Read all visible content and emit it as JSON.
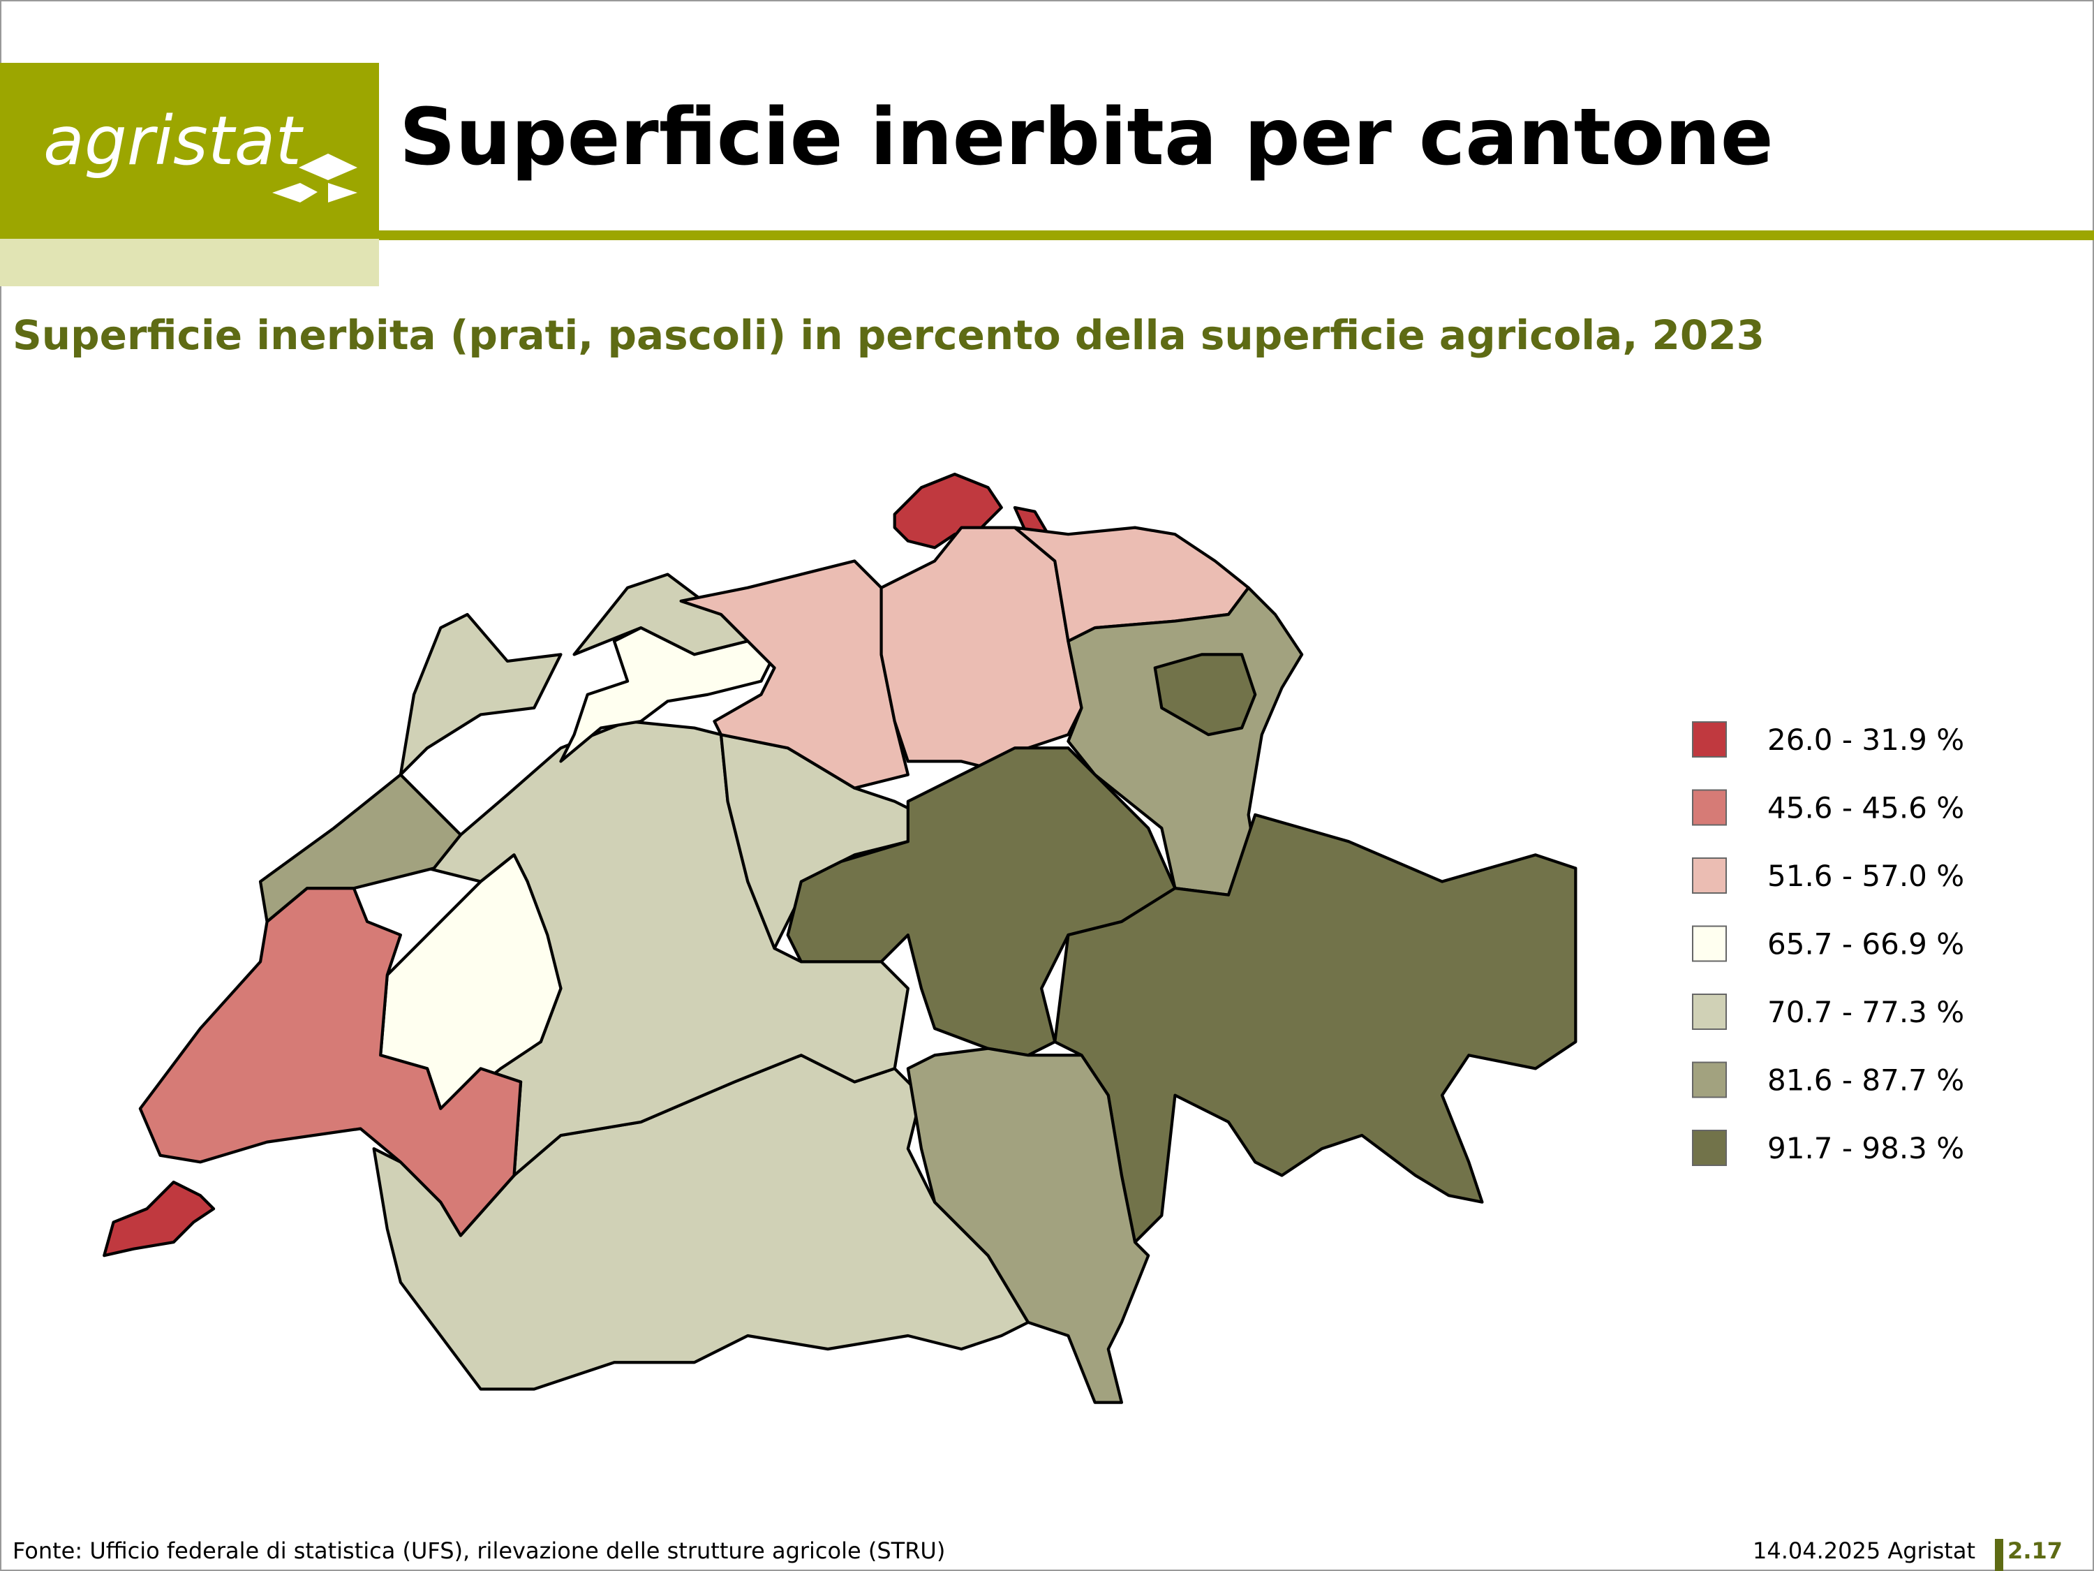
{
  "header": {
    "logo": "agristat",
    "title": "Superficie inerbita per cantone"
  },
  "subtitle": "Superficie inerbita (prati, pascoli) in percento della superficie agricola, 2023",
  "legend": [
    {
      "label": "26.0 - 31.9 %",
      "color": "#c0393f"
    },
    {
      "label": "45.6 - 45.6 %",
      "color": "#d67b76"
    },
    {
      "label": "51.6 - 57.0 %",
      "color": "#ebbdb3"
    },
    {
      "label": "65.7 - 66.9 %",
      "color": "#fffff0"
    },
    {
      "label": "70.7 - 77.3 %",
      "color": "#d0d1b6"
    },
    {
      "label": "81.6 - 87.7 %",
      "color": "#a2a27f"
    },
    {
      "label": "91.7 - 98.3 %",
      "color": "#72734a"
    }
  ],
  "footer": {
    "source": "Fonte: Ufficio federale di statistica (UFS), rilevazione delle strutture agricole (STRU)",
    "date": "14.04.2025 Agristat",
    "page": "2.17"
  }
}
